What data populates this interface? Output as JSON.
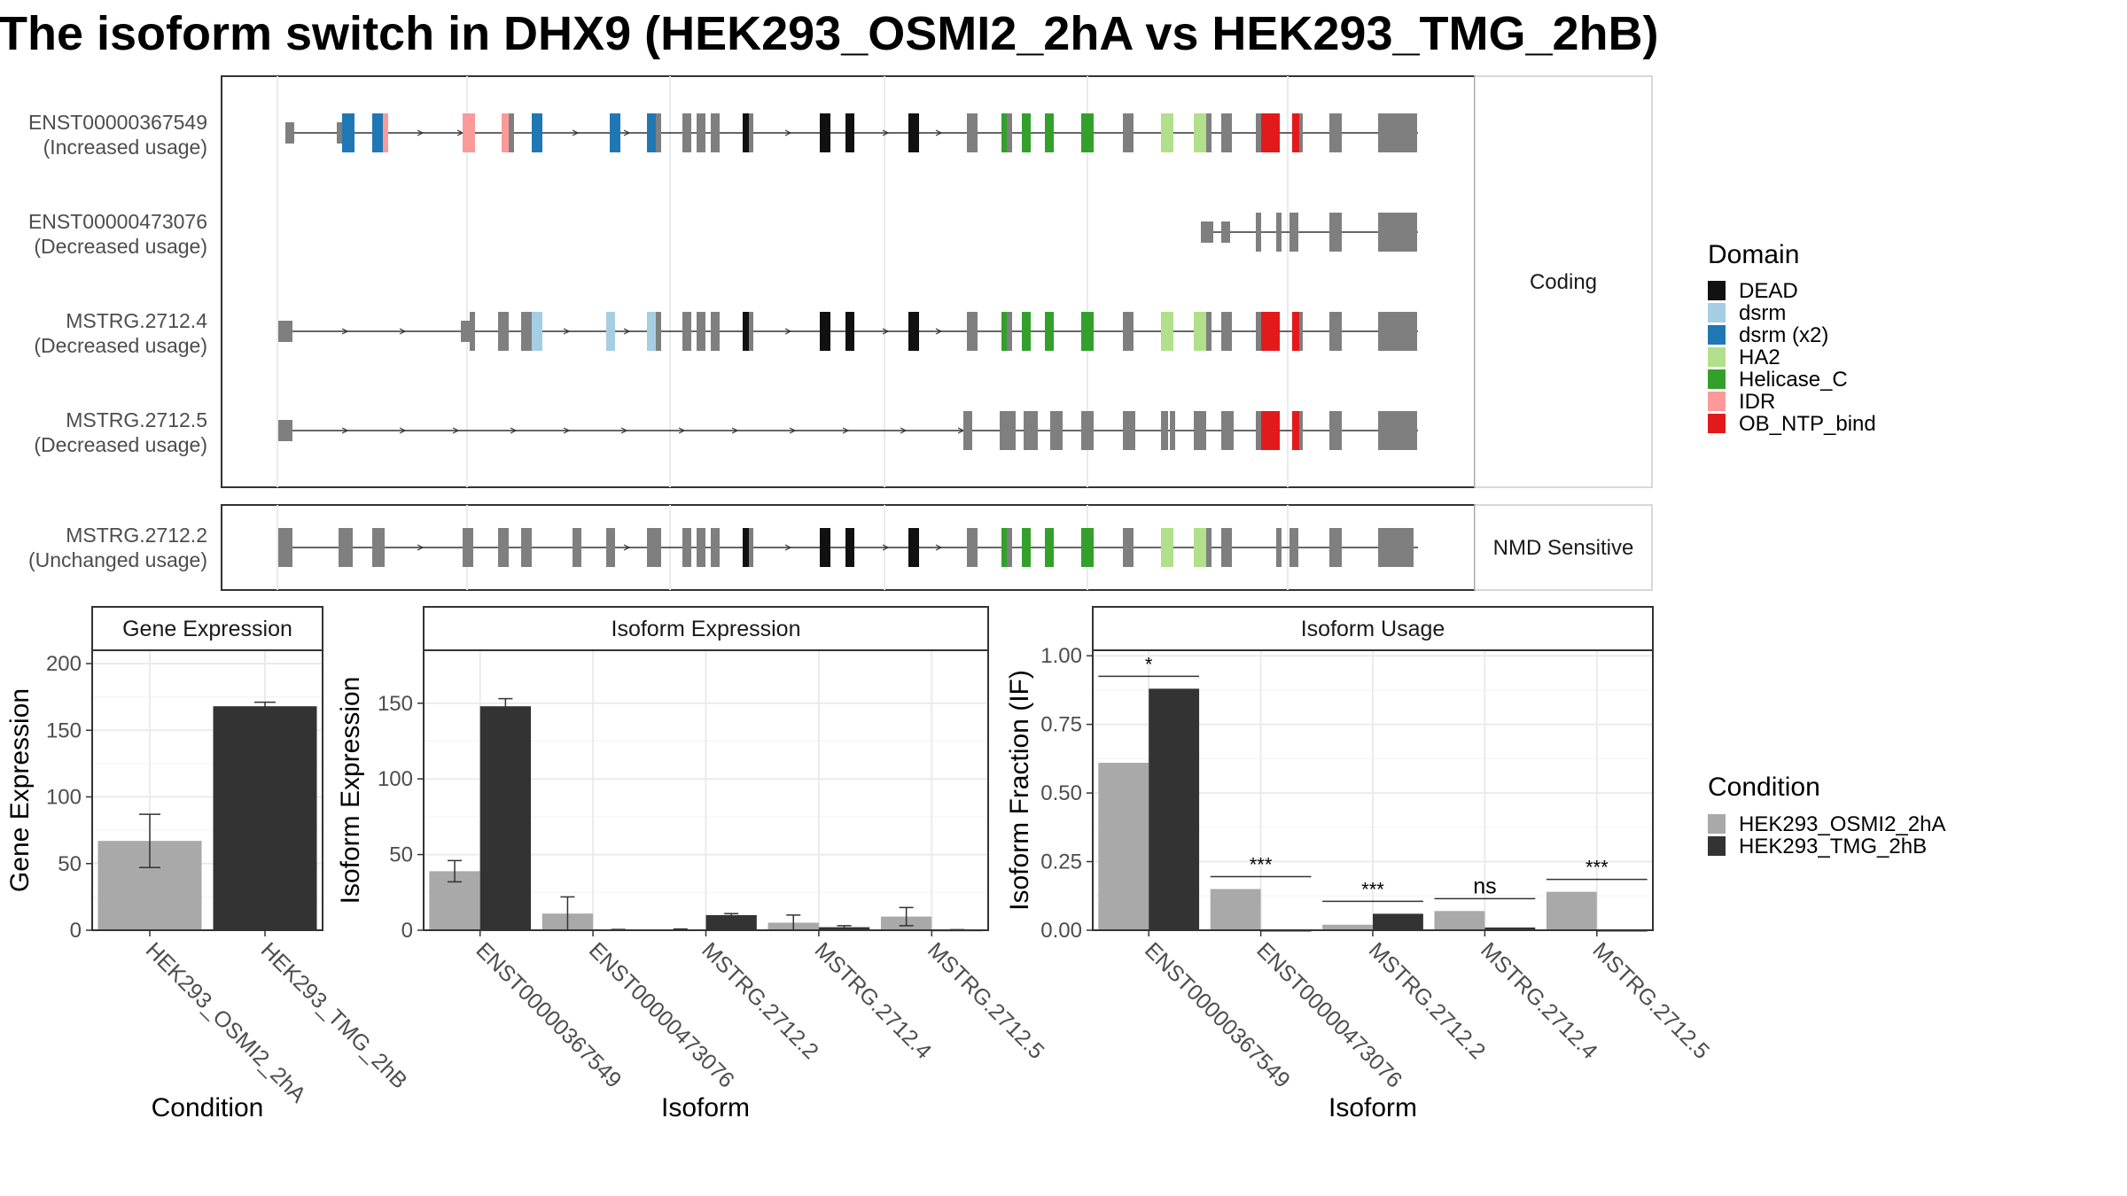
{
  "title": "The isoform switch in DHX9 (HEK293_OSMI2_2hA vs HEK293_TMG_2hB)",
  "domain_legend": {
    "title": "Domain",
    "items": [
      {
        "label": "DEAD",
        "color": "#111111"
      },
      {
        "label": "dsrm",
        "color": "#a6cee3"
      },
      {
        "label": "dsrm (x2)",
        "color": "#1f78b4"
      },
      {
        "label": "HA2",
        "color": "#b2df8a"
      },
      {
        "label": "Helicase_C",
        "color": "#33a02c"
      },
      {
        "label": "IDR",
        "color": "#fb9a99"
      },
      {
        "label": "OB_NTP_bind",
        "color": "#e31a1c"
      }
    ]
  },
  "condition_legend": {
    "title": "Condition",
    "items": [
      {
        "label": "HEK293_OSMI2_2hA",
        "color": "#a9a9a9"
      },
      {
        "label": "HEK293_TMG_2hB",
        "color": "#333333"
      }
    ]
  },
  "transcript_panels": [
    {
      "strip": "Coding",
      "transcripts": [
        {
          "id": "ENST00000367549",
          "status": "(Increased usage)"
        },
        {
          "id": "ENST00000473076",
          "status": "(Decreased usage)"
        },
        {
          "id": "MSTRG.2712.4",
          "status": "(Decreased usage)"
        },
        {
          "id": "MSTRG.2712.5",
          "status": "(Decreased usage)"
        }
      ]
    },
    {
      "strip": "NMD Sensitive",
      "transcripts": [
        {
          "id": "MSTRG.2712.2",
          "status": "(Unchanged usage)"
        }
      ]
    }
  ],
  "chart_data": [
    {
      "type": "bar",
      "title": "Gene Expression",
      "xlabel": "Condition",
      "ylabel": "Gene Expression",
      "ylim": [
        0,
        210
      ],
      "yticks": [
        0,
        50,
        100,
        150,
        200
      ],
      "categories": [
        "HEK293_OSMI2_2hA",
        "HEK293_TMG_2hB"
      ],
      "series": [
        {
          "values": [
            67,
            168
          ],
          "errors": [
            20,
            3
          ]
        }
      ],
      "bar_colors": [
        "#a9a9a9",
        "#333333"
      ]
    },
    {
      "type": "bar",
      "title": "Isoform Expression",
      "xlabel": "Isoform",
      "ylabel": "Isoform Expression",
      "ylim": [
        0,
        185
      ],
      "yticks": [
        0,
        50,
        100,
        150
      ],
      "categories": [
        "ENST00000367549",
        "ENST00000473076",
        "MSTRG.2712.2",
        "MSTRG.2712.4",
        "MSTRG.2712.5"
      ],
      "series": [
        {
          "name": "HEK293_OSMI2_2hA",
          "values": [
            39,
            11,
            0.5,
            5,
            9
          ],
          "errors": [
            7,
            11,
            0.3,
            5,
            6
          ]
        },
        {
          "name": "HEK293_TMG_2hB",
          "values": [
            148,
            0.3,
            10,
            2,
            0.2
          ],
          "errors": [
            5,
            0.2,
            1,
            1,
            0.2
          ]
        }
      ]
    },
    {
      "type": "bar",
      "title": "Isoform Usage",
      "xlabel": "Isoform",
      "ylabel": "Isoform Fraction (IF)",
      "ylim": [
        0,
        1.02
      ],
      "yticks": [
        0,
        0.25,
        0.5,
        0.75,
        1.0
      ],
      "ytick_labels": [
        "0.00",
        "0.25",
        "0.50",
        "0.75",
        "1.00"
      ],
      "categories": [
        "ENST00000367549",
        "ENST00000473076",
        "MSTRG.2712.2",
        "MSTRG.2712.4",
        "MSTRG.2712.5"
      ],
      "series": [
        {
          "name": "HEK293_OSMI2_2hA",
          "values": [
            0.61,
            0.15,
            0.02,
            0.07,
            0.14
          ]
        },
        {
          "name": "HEK293_TMG_2hB",
          "values": [
            0.88,
            0.0,
            0.06,
            0.01,
            0.0
          ]
        }
      ],
      "significance": [
        "*",
        "***",
        "***",
        "ns",
        "***"
      ]
    }
  ]
}
